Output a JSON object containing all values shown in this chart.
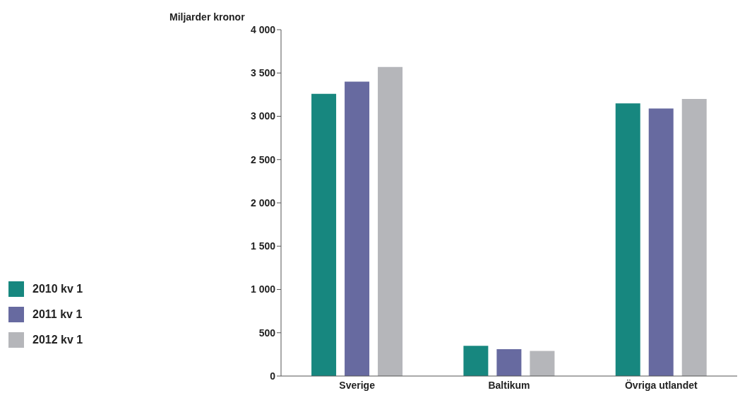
{
  "chart_data": {
    "type": "bar",
    "ylabel": "Miljarder kronor",
    "categories": [
      "Sverige",
      "Baltikum",
      "Övriga utlandet"
    ],
    "series": [
      {
        "name": "2010 kv 1",
        "color": "#17877f",
        "values": [
          3260,
          350,
          3150
        ]
      },
      {
        "name": "2011 kv 1",
        "color": "#676aa0",
        "values": [
          3400,
          310,
          3090
        ]
      },
      {
        "name": "2012 kv 1",
        "color": "#b5b6ba",
        "values": [
          3570,
          290,
          3200
        ]
      }
    ],
    "ylim": [
      0,
      4000
    ],
    "yticks": [
      0,
      500,
      {
        "value": 1000,
        "label": "1 000"
      },
      {
        "value": 1500,
        "label": "1 500"
      },
      {
        "value": 2000,
        "label": "2 000"
      },
      {
        "value": 2500,
        "label": "2 500"
      },
      {
        "value": 3000,
        "label": "3 000"
      },
      {
        "value": 3500,
        "label": "3 500"
      },
      {
        "value": 4000,
        "label": "4 000"
      }
    ],
    "grid": false,
    "legend": "left"
  }
}
